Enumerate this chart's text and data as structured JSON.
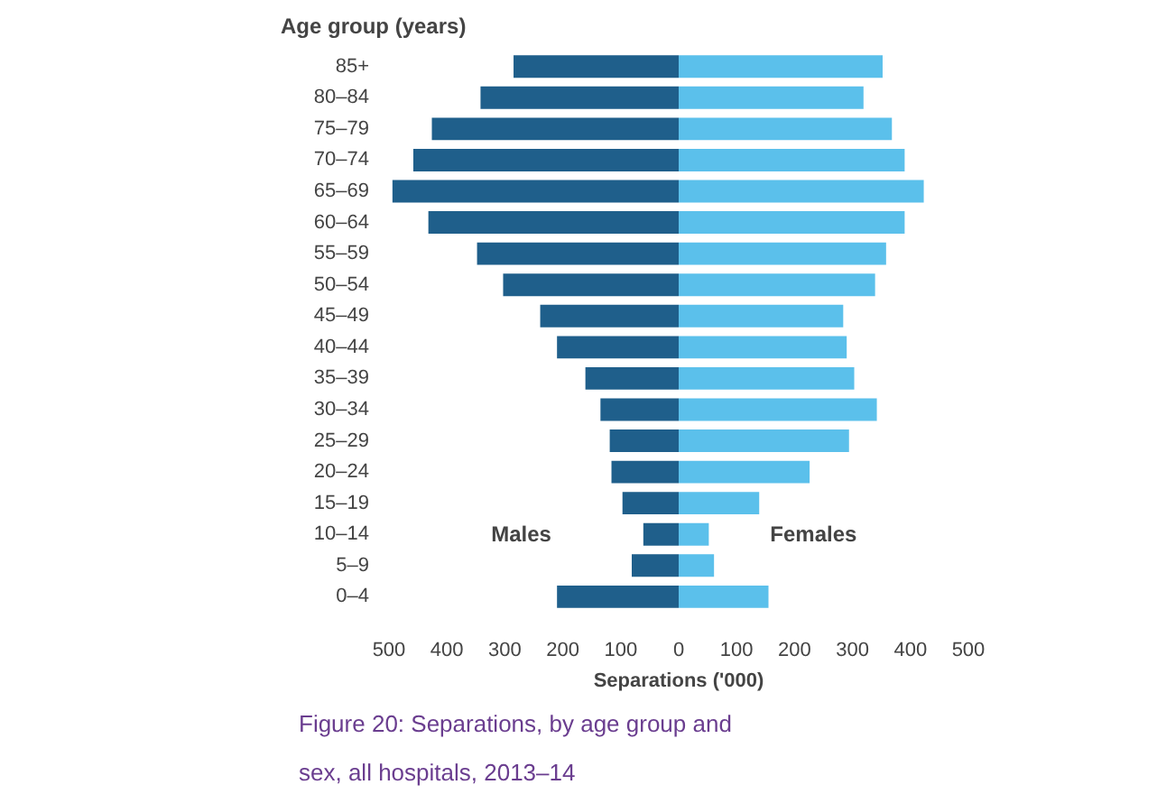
{
  "chart_data": {
    "type": "bar",
    "orientation": "horizontal",
    "title": "Age group (years)",
    "xlabel": "Separations ('000)",
    "categories": [
      "85+",
      "80–84",
      "75–79",
      "70–74",
      "65–69",
      "60–64",
      "55–59",
      "50–54",
      "45–49",
      "40–44",
      "35–39",
      "30–34",
      "25–29",
      "20–24",
      "15–19",
      "10–14",
      "5–9",
      "0–4"
    ],
    "series": [
      {
        "name": "Males",
        "color": "#1f5f8b",
        "values": [
          -285,
          -342,
          -426,
          -458,
          -494,
          -432,
          -348,
          -303,
          -239,
          -210,
          -161,
          -135,
          -119,
          -116,
          -97,
          -61,
          -81,
          -210
        ]
      },
      {
        "name": "Females",
        "color": "#5bc0eb",
        "values": [
          352,
          319,
          368,
          390,
          423,
          390,
          358,
          339,
          284,
          290,
          303,
          342,
          294,
          226,
          139,
          52,
          61,
          155
        ]
      }
    ],
    "xlim": [
      -500,
      500
    ],
    "xticks": [
      {
        "value": -500,
        "label": "500"
      },
      {
        "value": -400,
        "label": "400"
      },
      {
        "value": -300,
        "label": "300"
      },
      {
        "value": -200,
        "label": "200"
      },
      {
        "value": -100,
        "label": "100"
      },
      0,
      100,
      200,
      300,
      400,
      500
    ],
    "stacked": true,
    "grid": false,
    "annotations": [
      "Figure 20: Separations, by age group and sex, all hospitals, 2013–14"
    ]
  }
}
